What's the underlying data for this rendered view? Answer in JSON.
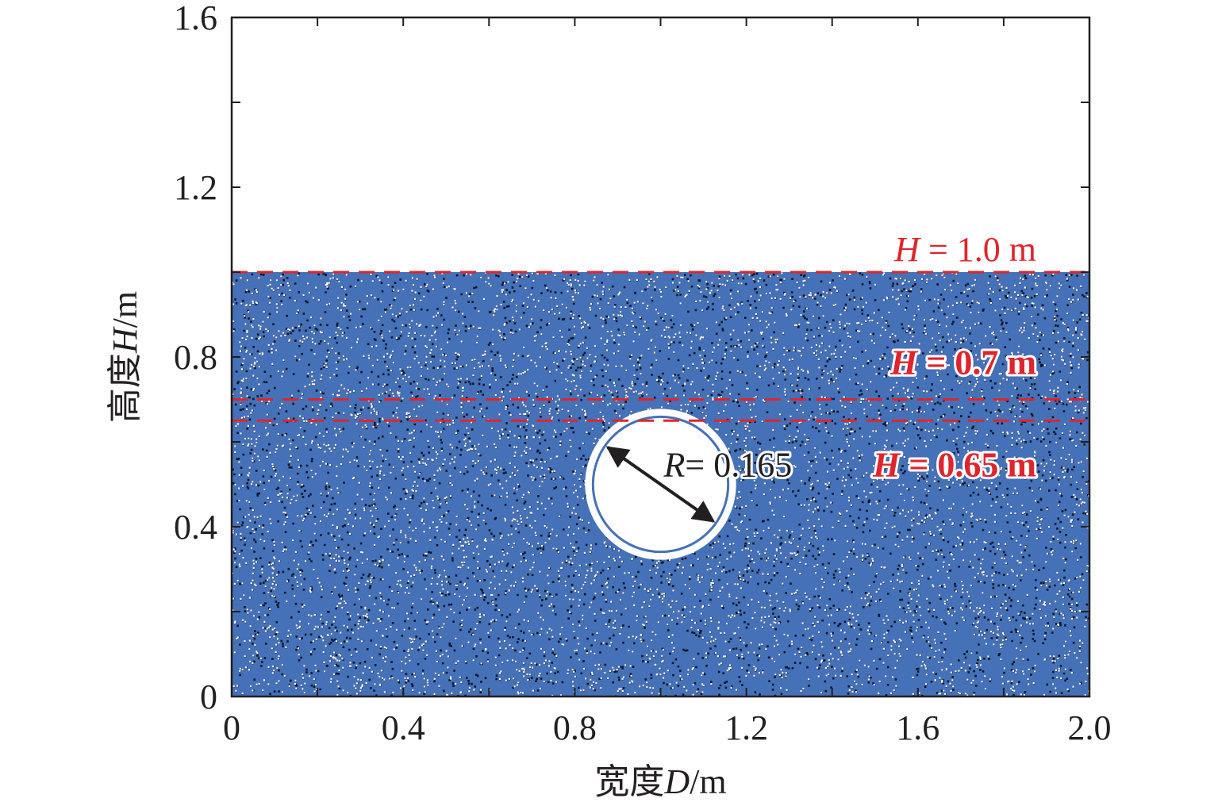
{
  "chart_data": {
    "type": "scatter",
    "title": "",
    "xlabel": {
      "prefix": "宽度",
      "symbol": "D",
      "unit": "/m"
    },
    "ylabel": {
      "prefix": "高度",
      "symbol": "H",
      "unit": "/m"
    },
    "xlim": [
      0,
      2.0
    ],
    "ylim": [
      0,
      1.6
    ],
    "x_ticks": [
      {
        "value": 0,
        "label": "0"
      },
      {
        "value": 0.4,
        "label": "0.4"
      },
      {
        "value": 0.8,
        "label": "0.8"
      },
      {
        "value": 1.2,
        "label": "1.2"
      },
      {
        "value": 1.6,
        "label": "1.6"
      },
      {
        "value": 2.0,
        "label": "2.0"
      }
    ],
    "y_ticks": [
      {
        "value": 0,
        "label": "0"
      },
      {
        "value": 0.4,
        "label": "0.4"
      },
      {
        "value": 0.8,
        "label": "0.8"
      },
      {
        "value": 1.2,
        "label": "1.2"
      },
      {
        "value": 1.6,
        "label": "1.6"
      }
    ],
    "particle_bed": {
      "x_range": [
        0,
        2.0
      ],
      "y_range": [
        0,
        1.0
      ]
    },
    "cavity": {
      "center": [
        1.0,
        0.5
      ],
      "radius": 0.165,
      "label_symbol": "R",
      "label_value": "= 0.165"
    },
    "levels": [
      {
        "y": 1.0,
        "symbol": "H",
        "text": "= 1.0 m"
      },
      {
        "y": 0.7,
        "symbol": "H",
        "text": "= 0.7 m"
      },
      {
        "y": 0.65,
        "symbol": "H",
        "text": "= 0.65 m"
      }
    ],
    "colors": {
      "particle_fill": "#4571b8",
      "particle_dark": "#0e1526",
      "particle_light": "#ffffff",
      "level_line": "#e0242c",
      "axis": "#231f20"
    }
  }
}
